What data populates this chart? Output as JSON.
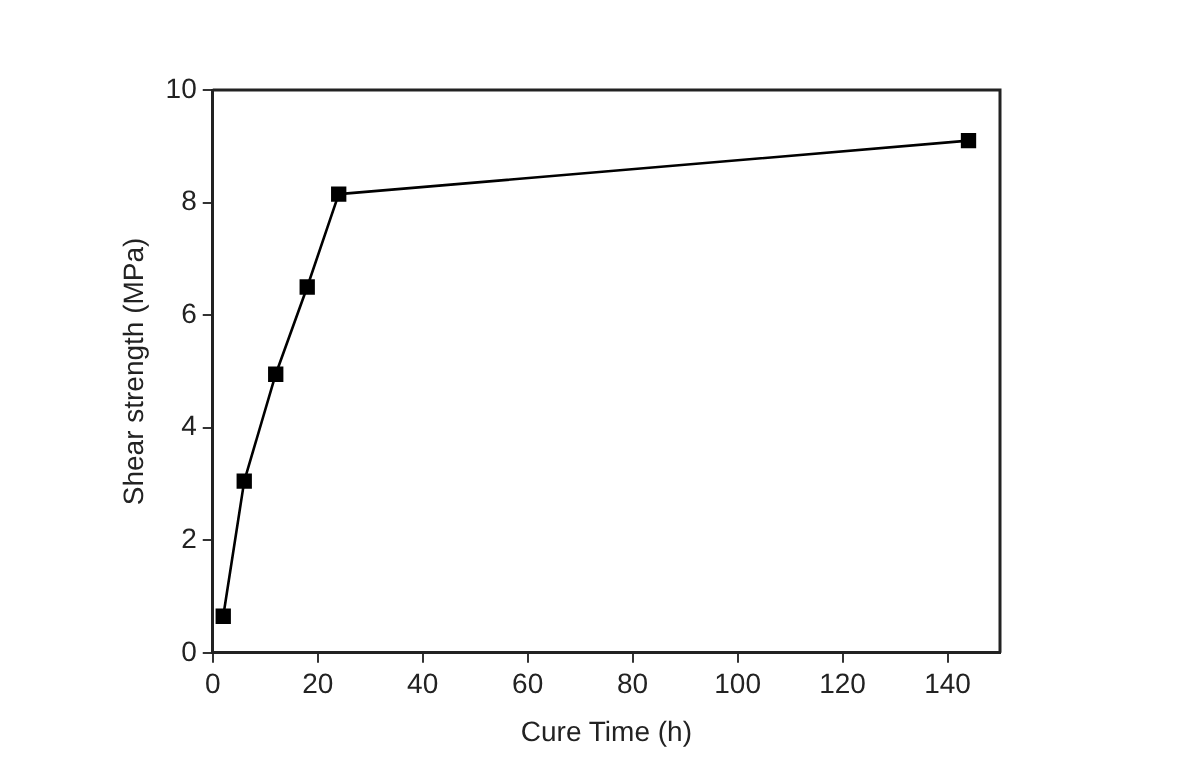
{
  "chart_data": {
    "type": "line",
    "xlabel": "Cure Time (h)",
    "ylabel": "Shear strength (MPa)",
    "x": [
      2,
      6,
      12,
      18,
      24,
      144
    ],
    "series": [
      {
        "color": "#000000",
        "values": [
          0.65,
          3.05,
          4.95,
          6.5,
          8.15,
          9.1
        ]
      }
    ],
    "xlim": [
      0,
      150
    ],
    "xticks": [
      0,
      20,
      40,
      60,
      80,
      100,
      120,
      140
    ],
    "ylim": [
      0,
      10
    ],
    "yticks": [
      0,
      2,
      4,
      6,
      8,
      10
    ],
    "grid": false,
    "legend": false,
    "marker": "square",
    "line_style": "solid"
  }
}
